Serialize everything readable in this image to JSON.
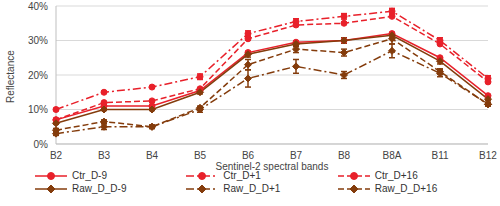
{
  "chart_data": {
    "type": "line",
    "x_label": "Sentinel-2 spectral bands",
    "y_label": "Reflectance",
    "categories": [
      "B2",
      "B3",
      "B4",
      "B5",
      "B6",
      "B7",
      "B8",
      "B8A",
      "B11",
      "B12"
    ],
    "ylim": [
      0,
      40
    ],
    "yticks": [
      {
        "value": 0,
        "label": "0%"
      },
      {
        "value": 10,
        "label": "10%"
      },
      {
        "value": 20,
        "label": "20%"
      },
      {
        "value": 30,
        "label": "30%"
      },
      {
        "value": 40,
        "label": "40%"
      }
    ],
    "grid": true,
    "legend": "bottom",
    "series": [
      {
        "name": "Ctr_D-9",
        "color": "#e8202a",
        "marker": "circle",
        "line_style": "solid",
        "values": [
          7,
          11,
          11,
          15.5,
          26.5,
          29.5,
          30,
          32,
          25,
          14
        ]
      },
      {
        "name": "Ctr_D+1",
        "color": "#e8202a",
        "marker": "circle",
        "line_style": "dashdot",
        "values": [
          10,
          15,
          16.5,
          19.5,
          32,
          35.5,
          37,
          38.5,
          30,
          19
        ],
        "errors": [
          0.3,
          0.3,
          0.3,
          0.8,
          0.8,
          0.8,
          0.8,
          0.8,
          0.8,
          0.8
        ]
      },
      {
        "name": "Ctr_D+16",
        "color": "#e8202a",
        "marker": "circle",
        "line_style": "dashed",
        "values": [
          7,
          12,
          12.5,
          16,
          30.5,
          34.5,
          35,
          37,
          29,
          18
        ]
      },
      {
        "name": "Raw_D_D-9",
        "color": "#843c0c",
        "marker": "diamond",
        "line_style": "solid",
        "values": [
          6,
          10,
          10,
          15,
          26,
          29,
          30,
          31.5,
          24,
          13
        ],
        "errors": [
          0.3,
          0.3,
          0.3,
          0.5,
          0.8,
          0.8,
          0.8,
          0.8,
          0.8,
          0.5
        ]
      },
      {
        "name": "Raw_D_D+1",
        "color": "#843c0c",
        "marker": "diamond",
        "line_style": "dashdot",
        "values": [
          3,
          5,
          5,
          10,
          19,
          22.5,
          20,
          27,
          20.5,
          11.5
        ],
        "errors": [
          0.5,
          0.8,
          0.5,
          0.8,
          2.5,
          2,
          1,
          2,
          1,
          0.5
        ]
      },
      {
        "name": "Raw_D_D+16",
        "color": "#843c0c",
        "marker": "diamond",
        "line_style": "dashed",
        "values": [
          4,
          6.5,
          5,
          10.5,
          23,
          27.5,
          26.5,
          30.5,
          21,
          11.5
        ],
        "errors": [
          0.5,
          0.5,
          0.5,
          0.5,
          1.5,
          1,
          1,
          1.5,
          0.8,
          0.5
        ]
      }
    ]
  }
}
